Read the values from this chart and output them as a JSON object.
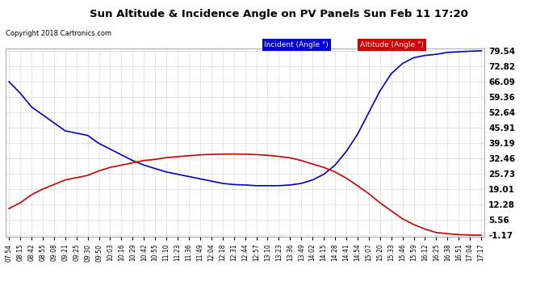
{
  "title": "Sun Altitude & Incidence Angle on PV Panels Sun Feb 11 17:20",
  "copyright": "Copyright 2018 Cartronics.com",
  "ylim": [
    -1.17,
    79.54
  ],
  "yticks": [
    79.54,
    72.82,
    66.09,
    59.36,
    52.64,
    45.91,
    39.19,
    32.46,
    25.73,
    19.01,
    12.28,
    5.56,
    -1.17
  ],
  "xtick_labels": [
    "07:54",
    "08:15",
    "08:42",
    "08:55",
    "09:08",
    "09:21",
    "09:25",
    "09:30",
    "09:50",
    "10:03",
    "10:16",
    "10:29",
    "10:42",
    "10:55",
    "11:10",
    "11:23",
    "11:36",
    "11:49",
    "12:04",
    "12:18",
    "12:31",
    "12:44",
    "12:57",
    "13:10",
    "13:23",
    "13:36",
    "13:49",
    "14:02",
    "14:15",
    "14:28",
    "14:41",
    "14:54",
    "15:07",
    "15:20",
    "15:33",
    "15:46",
    "15:59",
    "16:12",
    "16:25",
    "16:38",
    "16:51",
    "17:04",
    "17:17"
  ],
  "incident_color": "#0000cc",
  "altitude_color": "#cc0000",
  "legend_incident_label": "Incident (Angle °)",
  "legend_altitude_label": "Altitude (Angle °)",
  "legend_incident_bg": "#0000cc",
  "legend_altitude_bg": "#cc0000",
  "bg_color": "#ffffff",
  "grid_color": "#cccccc",
  "incident_data": [
    66.0,
    61.0,
    55.0,
    51.5,
    48.0,
    44.5,
    43.5,
    42.5,
    39.0,
    36.5,
    34.0,
    31.5,
    29.5,
    28.0,
    26.5,
    25.5,
    24.5,
    23.5,
    22.5,
    21.5,
    21.0,
    20.8,
    20.5,
    20.5,
    20.5,
    20.8,
    21.5,
    23.0,
    25.5,
    29.5,
    35.5,
    43.0,
    52.5,
    62.0,
    69.5,
    74.0,
    76.5,
    77.5,
    78.0,
    78.8,
    79.1,
    79.35,
    79.54
  ],
  "altitude_data": [
    10.5,
    13.0,
    16.5,
    19.0,
    21.0,
    23.0,
    24.0,
    25.0,
    27.0,
    28.5,
    29.5,
    30.5,
    31.5,
    32.0,
    32.8,
    33.2,
    33.6,
    34.0,
    34.2,
    34.3,
    34.35,
    34.3,
    34.1,
    33.8,
    33.3,
    32.7,
    31.5,
    30.0,
    28.5,
    26.5,
    23.8,
    20.5,
    17.0,
    13.0,
    9.5,
    6.0,
    3.5,
    1.5,
    0.0,
    -0.5,
    -0.9,
    -1.1,
    -1.17
  ]
}
